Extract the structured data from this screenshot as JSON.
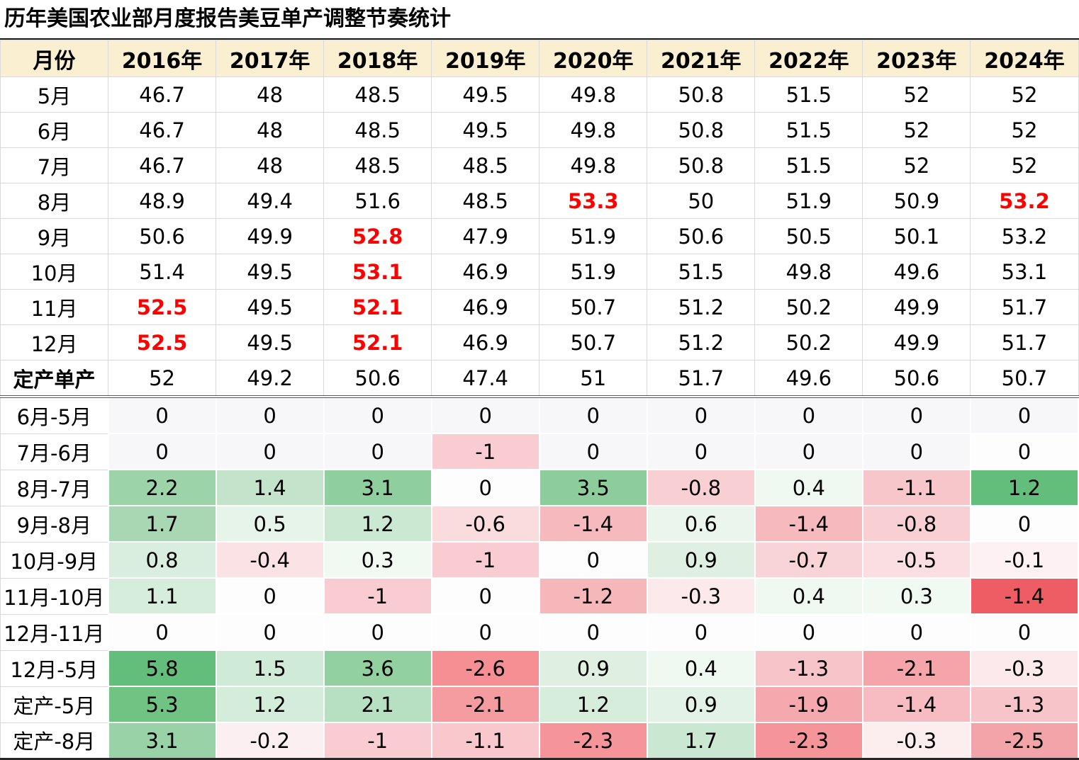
{
  "title": "历年美国农业部月度报告美豆单产调整节奏统计",
  "colors": {
    "header_bg": "#FBEFD2",
    "grid_line": "#D9D9D9",
    "red_text": "#FF0000",
    "title_rule": "#1A1A1A",
    "outer_border": "#808080",
    "heat_green_max": "#63BE7B",
    "heat_red_max": "#EE5D64",
    "heat_neutral": "#FDFDFE"
  },
  "chart_data": {
    "type": "table",
    "title": "历年美国农业部月度报告美豆单产调整节奏统计",
    "columns": [
      "月份",
      "2016年",
      "2017年",
      "2018年",
      "2019年",
      "2020年",
      "2021年",
      "2022年",
      "2023年",
      "2024年"
    ],
    "yield_rows": [
      {
        "label": "5月",
        "values": [
          "46.7",
          "48",
          "48.5",
          "49.5",
          "49.8",
          "50.8",
          "51.5",
          "52",
          "52"
        ],
        "red_cols": []
      },
      {
        "label": "6月",
        "values": [
          "46.7",
          "48",
          "48.5",
          "49.5",
          "49.8",
          "50.8",
          "51.5",
          "52",
          "52"
        ],
        "red_cols": []
      },
      {
        "label": "7月",
        "values": [
          "46.7",
          "48",
          "48.5",
          "48.5",
          "49.8",
          "50.8",
          "51.5",
          "52",
          "52"
        ],
        "red_cols": []
      },
      {
        "label": "8月",
        "values": [
          "48.9",
          "49.4",
          "51.6",
          "48.5",
          "53.3",
          "50",
          "51.9",
          "50.9",
          "53.2"
        ],
        "red_cols": [
          4,
          8
        ]
      },
      {
        "label": "9月",
        "values": [
          "50.6",
          "49.9",
          "52.8",
          "47.9",
          "51.9",
          "50.6",
          "50.5",
          "50.1",
          "53.2"
        ],
        "red_cols": [
          2
        ]
      },
      {
        "label": "10月",
        "values": [
          "51.4",
          "49.5",
          "53.1",
          "46.9",
          "51.9",
          "51.5",
          "49.8",
          "49.6",
          "53.1"
        ],
        "red_cols": [
          2
        ]
      },
      {
        "label": "11月",
        "values": [
          "52.5",
          "49.5",
          "52.1",
          "46.9",
          "50.7",
          "51.2",
          "50.2",
          "49.9",
          "51.7"
        ],
        "red_cols": [
          0,
          2
        ]
      },
      {
        "label": "12月",
        "values": [
          "52.5",
          "49.5",
          "52.1",
          "46.9",
          "50.7",
          "51.2",
          "50.2",
          "49.9",
          "51.7"
        ],
        "red_cols": [
          0,
          2
        ]
      },
      {
        "label": "定产单产",
        "values": [
          "52",
          "49.2",
          "50.6",
          "47.4",
          "51",
          "51.7",
          "49.6",
          "50.6",
          "50.7"
        ],
        "red_cols": [],
        "bold_label": true
      }
    ],
    "diff_rows": [
      {
        "label": "6月-5月",
        "values": [
          "0",
          "0",
          "0",
          "0",
          "0",
          "0",
          "0",
          "0",
          "0"
        ],
        "bg": [
          "#F7F7FA",
          "#F7F7FA",
          "#F7F7FA",
          "#F7F7FA",
          "#F7F7FA",
          "#F7F7FA",
          "#F7F7FA",
          "#F7F7FA",
          "#F7F7FA"
        ]
      },
      {
        "label": "7月-6月",
        "values": [
          "0",
          "0",
          "0",
          "-1",
          "0",
          "0",
          "0",
          "0",
          "0"
        ],
        "bg": [
          "#F7F7FA",
          "#F7F7FA",
          "#F7F7FA",
          "#F8CCD0",
          "#F7F7FA",
          "#F7F7FA",
          "#F7F7FA",
          "#F7F7FA",
          "#FDFDFE"
        ]
      },
      {
        "label": "8月-7月",
        "values": [
          "2.2",
          "1.4",
          "3.1",
          "0",
          "3.5",
          "-0.8",
          "0.4",
          "-1.1",
          "1.2"
        ],
        "bg": [
          "#9CD3A8",
          "#C3E4CB",
          "#8FCE9D",
          "#FDFDFE",
          "#8DCD9C",
          "#F8CFD3",
          "#EFF8F1",
          "#F7C6CB",
          "#63BE7B"
        ]
      },
      {
        "label": "9月-8月",
        "values": [
          "1.7",
          "0.5",
          "1.2",
          "-0.6",
          "-1.4",
          "0.6",
          "-1.4",
          "-0.8",
          "0"
        ],
        "bg": [
          "#A9D7B3",
          "#E6F4EA",
          "#CBE8D3",
          "#FADCDF",
          "#F6B9BD",
          "#EAF5ED",
          "#F6B9BD",
          "#F8CFD3",
          "#FDFDFE"
        ]
      },
      {
        "label": "10月-9月",
        "values": [
          "0.8",
          "-0.4",
          "0.3",
          "-1",
          "0",
          "0.9",
          "-0.7",
          "-0.5",
          "-0.1"
        ],
        "bg": [
          "#D9EEDE",
          "#FBE2E5",
          "#F1F9F3",
          "#F8CCD0",
          "#FDFDFE",
          "#DFF0E3",
          "#F9D4D7",
          "#FADEE1",
          "#FDF1F3"
        ]
      },
      {
        "label": "11月-10月",
        "values": [
          "1.1",
          "0",
          "-1",
          "0",
          "-1.2",
          "-0.3",
          "0.4",
          "0.3",
          "-1.4"
        ],
        "bg": [
          "#D6EDDB",
          "#FDFDFE",
          "#F8CCD0",
          "#FDFDFE",
          "#F6B7BB",
          "#FCE9EB",
          "#EFF8F1",
          "#F1F9F3",
          "#EE5D64"
        ]
      },
      {
        "label": "12月-11月",
        "values": [
          "0",
          "0",
          "0",
          "0",
          "0",
          "0",
          "0",
          "0",
          "0"
        ],
        "bg": [
          "#FDFDFE",
          "#FDFDFE",
          "#FDFDFE",
          "#FDFDFE",
          "#FDFDFE",
          "#FDFDFE",
          "#FDFDFE",
          "#FDFDFE",
          "#FDFDFE"
        ]
      },
      {
        "label": "12月-5月",
        "values": [
          "5.8",
          "1.5",
          "3.6",
          "-2.6",
          "0.9",
          "0.4",
          "-1.3",
          "-2.1",
          "-0.3"
        ],
        "bg": [
          "#63BE7B",
          "#CFEAD6",
          "#92D0A0",
          "#F58F94",
          "#DFF0E3",
          "#EFF8F1",
          "#F7C4C9",
          "#F5A4A9",
          "#FCE9EB"
        ]
      },
      {
        "label": "定产-5月",
        "values": [
          "5.3",
          "1.2",
          "2.1",
          "-2.1",
          "1.2",
          "0.9",
          "-1.9",
          "-1.4",
          "-1.3"
        ],
        "bg": [
          "#71C384",
          "#D4ECDA",
          "#B7DFC1",
          "#F59CA1",
          "#D6EDDC",
          "#E2F2E6",
          "#F5A9AE",
          "#F7BCC1",
          "#F7C4C9"
        ]
      },
      {
        "label": "定产-8月",
        "values": [
          "3.1",
          "-0.2",
          "-1",
          "-1.1",
          "-2.3",
          "1.7",
          "-2.3",
          "-0.3",
          "-2.5"
        ],
        "bg": [
          "#9AD2A7",
          "#FBEFF1",
          "#F8CCD0",
          "#F8C8CD",
          "#F59599",
          "#C9E7D1",
          "#F59599",
          "#FCEDEF",
          "#F2A4A9"
        ]
      }
    ]
  }
}
